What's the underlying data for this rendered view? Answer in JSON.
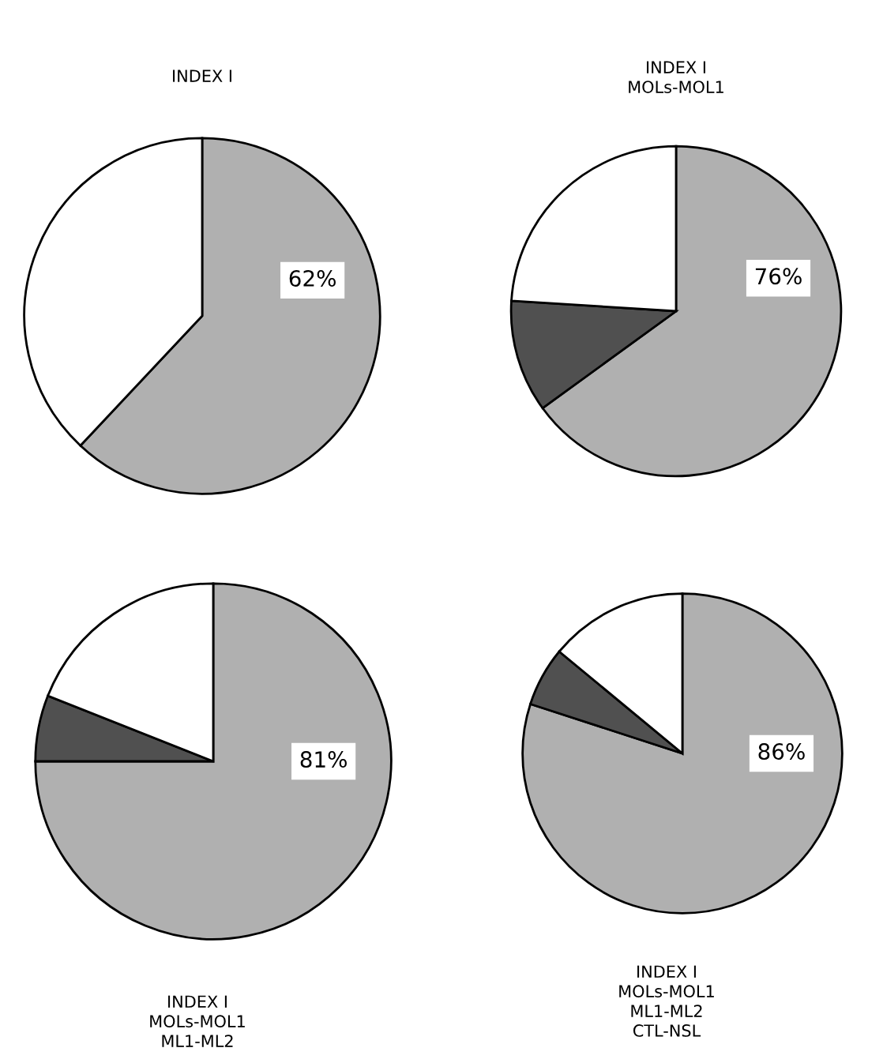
{
  "chart_data": [
    {
      "type": "pie",
      "title": "INDEX I",
      "categories": [
        null,
        null
      ],
      "values": [
        62,
        38
      ],
      "colors": [
        "#b0b0b0",
        "#ffffff"
      ],
      "annotations": [
        "62%"
      ]
    },
    {
      "type": "pie",
      "title": "INDEX I\nMOLs-MOL1",
      "categories": [
        null,
        null,
        null
      ],
      "values": [
        65,
        11,
        24
      ],
      "colors": [
        "#b0b0b0",
        "#505050",
        "#ffffff"
      ],
      "annotations": [
        "76%"
      ]
    },
    {
      "type": "pie",
      "title": "INDEX I\nMOLs-MOL1\nML1-ML2",
      "categories": [
        null,
        null,
        null
      ],
      "values": [
        75,
        6,
        19
      ],
      "colors": [
        "#b0b0b0",
        "#505050",
        "#ffffff"
      ],
      "annotations": [
        "81%"
      ]
    },
    {
      "type": "pie",
      "title": "INDEX I\nMOLs-MOL1\nML1-ML2\nCTL-NSL",
      "categories": [
        null,
        null,
        null
      ],
      "values": [
        80,
        6,
        14
      ],
      "colors": [
        "#b0b0b0",
        "#505050",
        "#ffffff"
      ],
      "annotations": [
        "86%"
      ]
    }
  ]
}
